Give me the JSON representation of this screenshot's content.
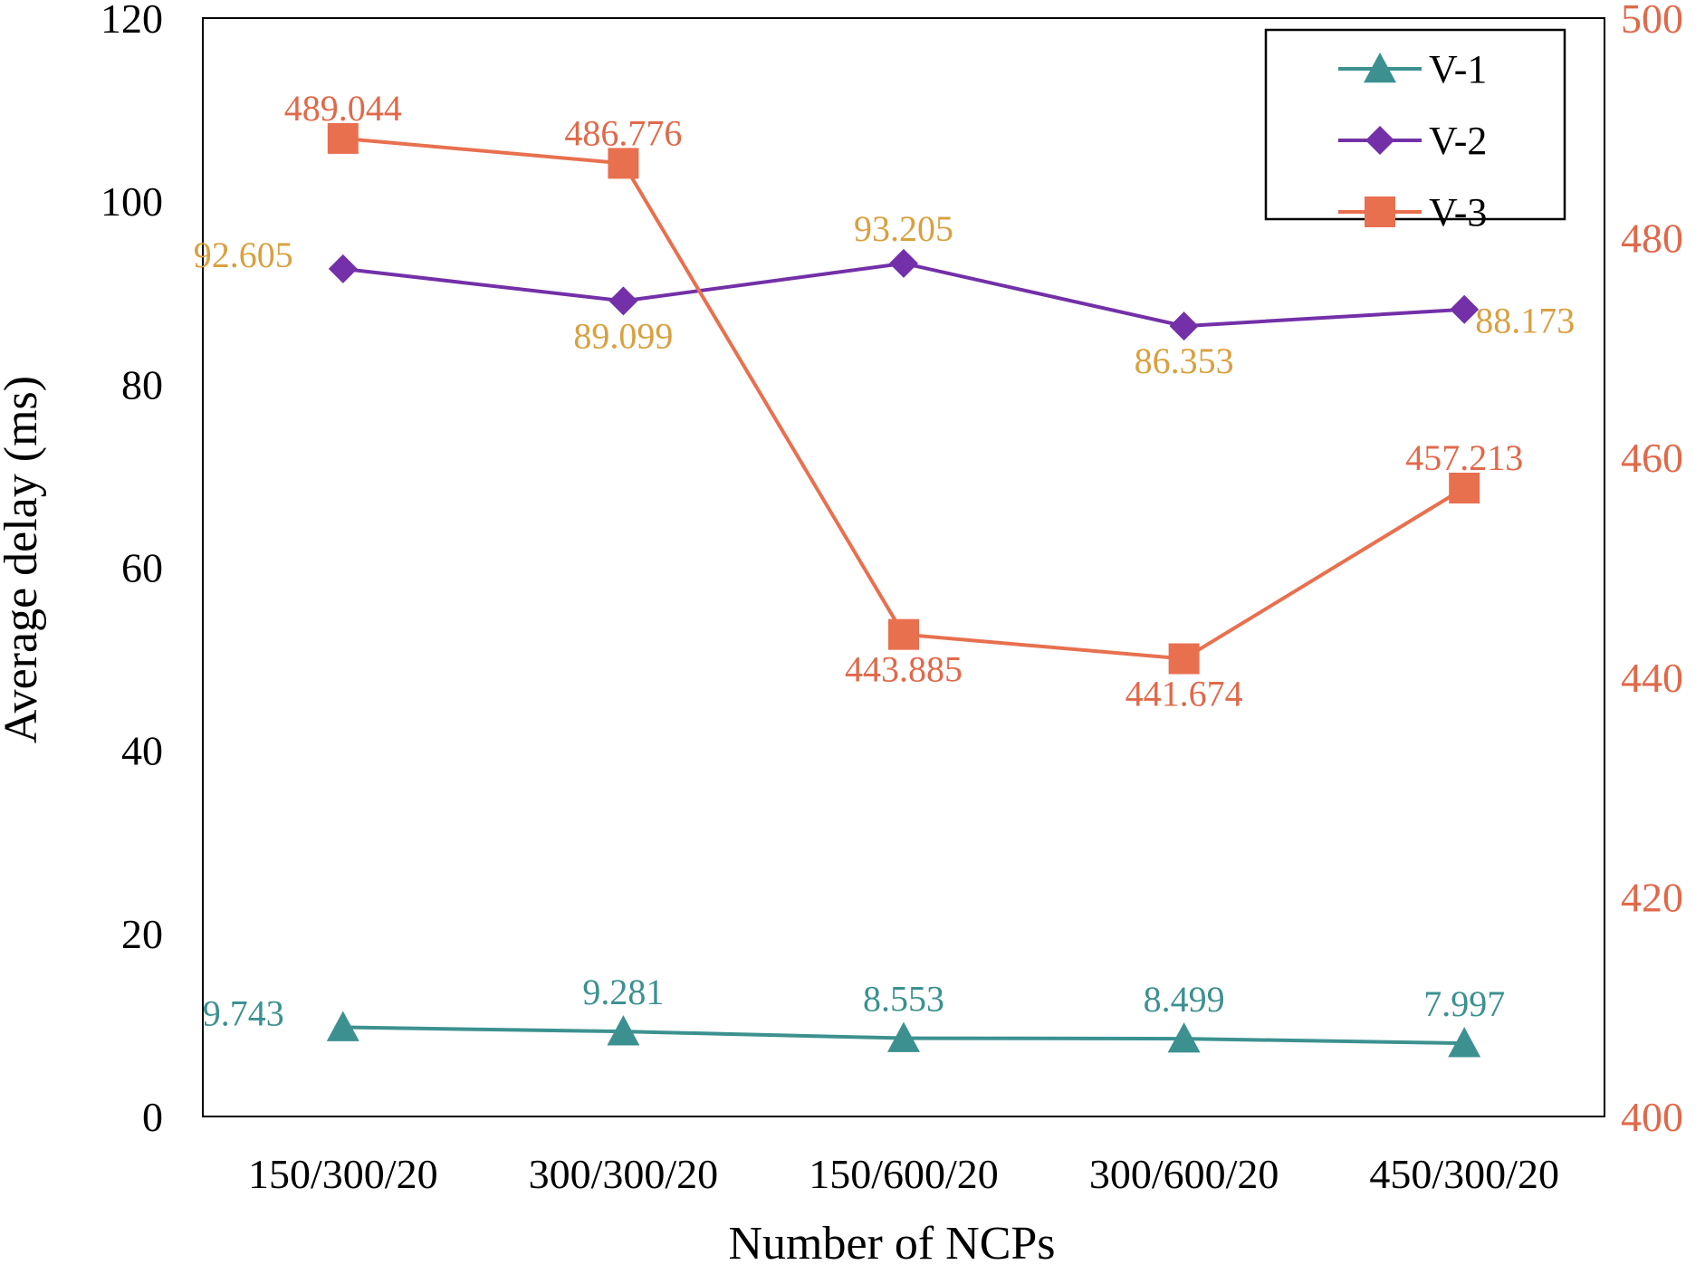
{
  "chart_data": {
    "type": "line",
    "title": "",
    "xlabel": "Number of NCPs",
    "ylabel": "Average delay (ms)",
    "ylabel_right": "",
    "categories": [
      "150/300/20",
      "300/300/20",
      "150/600/20",
      "300/600/20",
      "450/300/20"
    ],
    "ylim": [
      0,
      120
    ],
    "y_ticks": [
      "0",
      "20",
      "40",
      "60",
      "80",
      "100",
      "120"
    ],
    "ylim_right": [
      400,
      500
    ],
    "y_ticks_right": [
      "400",
      "420",
      "440",
      "460",
      "480",
      "500"
    ],
    "grid": false,
    "legend_position": "top-right",
    "colors": {
      "axis": "#000000",
      "right_axis_text": "#E0694A",
      "v1": "#3C9190",
      "v2": "#7330A8",
      "v3": "#E8704F",
      "v2_labels": "#D9A040",
      "v3_labels": "#E0694A"
    },
    "series": [
      {
        "name": "V-1",
        "axis": "left",
        "marker": "triangle",
        "values": [
          9.743,
          9.281,
          8.553,
          8.499,
          7.997
        ],
        "labels": [
          "9.743",
          "9.281",
          "8.553",
          "8.499",
          "7.997"
        ]
      },
      {
        "name": "V-2",
        "axis": "left",
        "marker": "diamond",
        "values": [
          92.605,
          89.099,
          93.205,
          86.353,
          88.173
        ],
        "labels": [
          "92.605",
          "89.099",
          "93.205",
          "86.353",
          "88.173"
        ]
      },
      {
        "name": "V-3",
        "axis": "right",
        "marker": "square",
        "values": [
          489.044,
          486.776,
          443.885,
          441.674,
          457.213
        ],
        "labels": [
          "489.044",
          "486.776",
          "443.885",
          "441.674",
          "457.213"
        ]
      }
    ]
  }
}
